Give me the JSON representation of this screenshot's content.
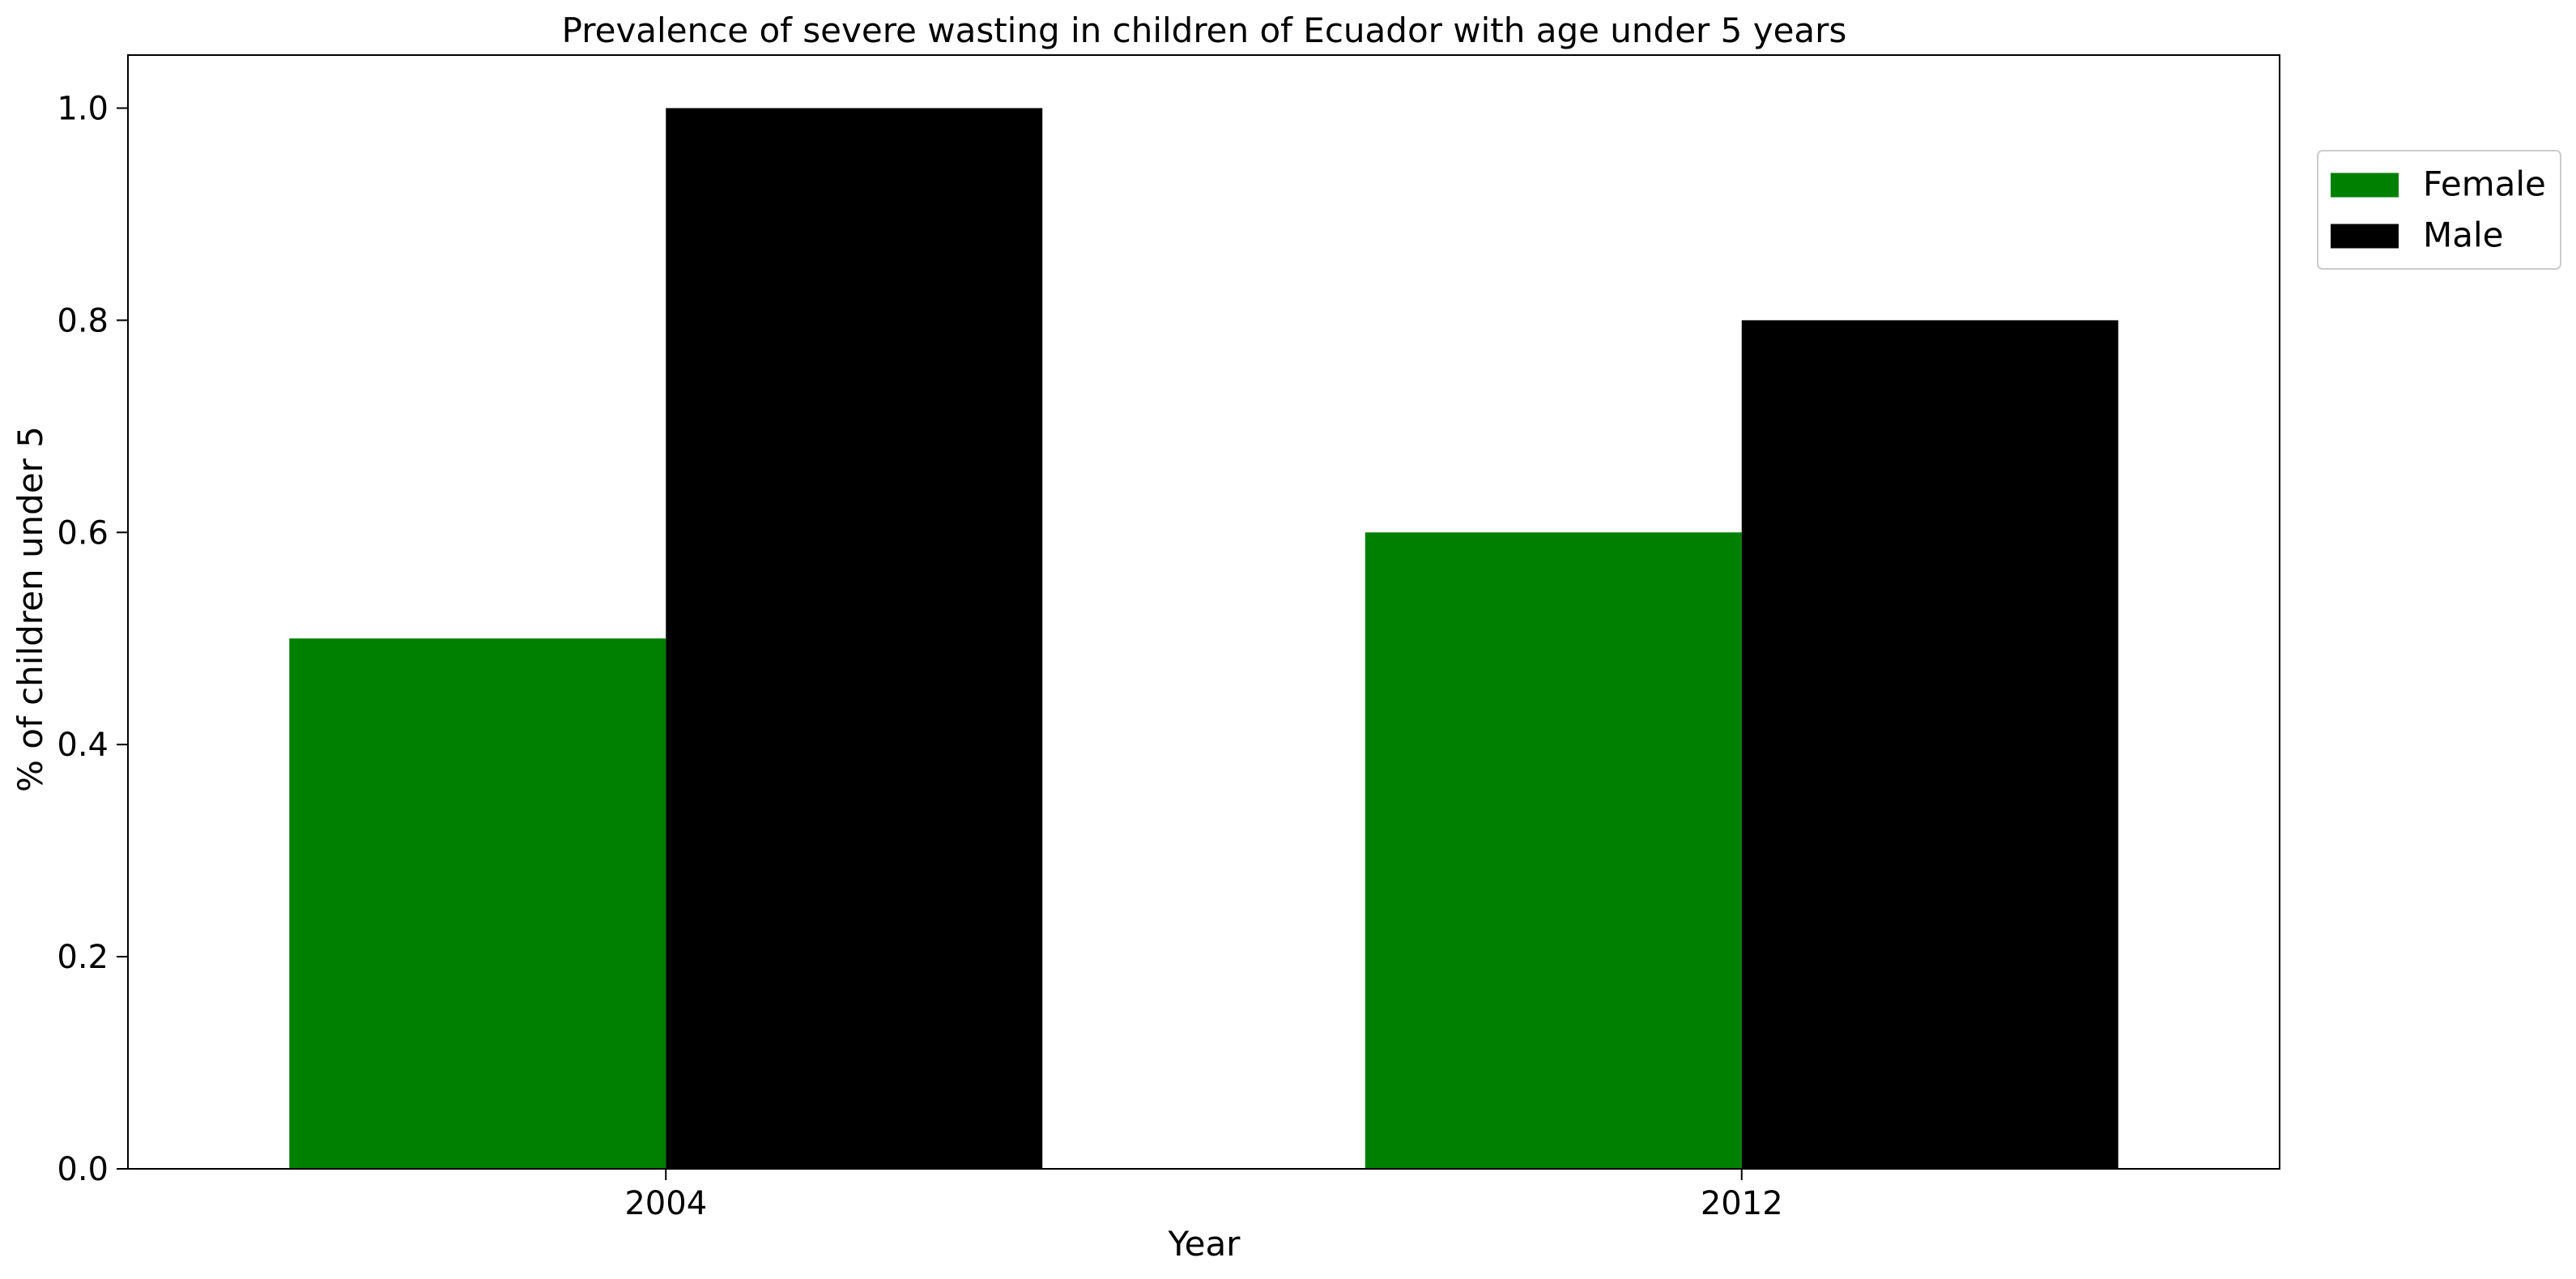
{
  "chart_data": {
    "type": "bar",
    "title": "Prevalence of severe wasting in children of Ecuador with age under 5 years",
    "xlabel": "Year",
    "ylabel": "% of children under 5",
    "categories": [
      "2004",
      "2012"
    ],
    "series": [
      {
        "name": "Female",
        "color": "#008000",
        "values": [
          0.5,
          0.6
        ]
      },
      {
        "name": "Male",
        "color": "#000000",
        "values": [
          1.0,
          0.8
        ]
      }
    ],
    "ylim": [
      0,
      1.05
    ],
    "yticks": [
      0.0,
      0.2,
      0.4,
      0.6,
      0.8,
      1.0
    ],
    "ytick_labels": [
      "0.0",
      "0.2",
      "0.4",
      "0.6",
      "0.8",
      "1.0"
    ],
    "grid": false,
    "legend": {
      "position": "outside-top-right"
    }
  }
}
